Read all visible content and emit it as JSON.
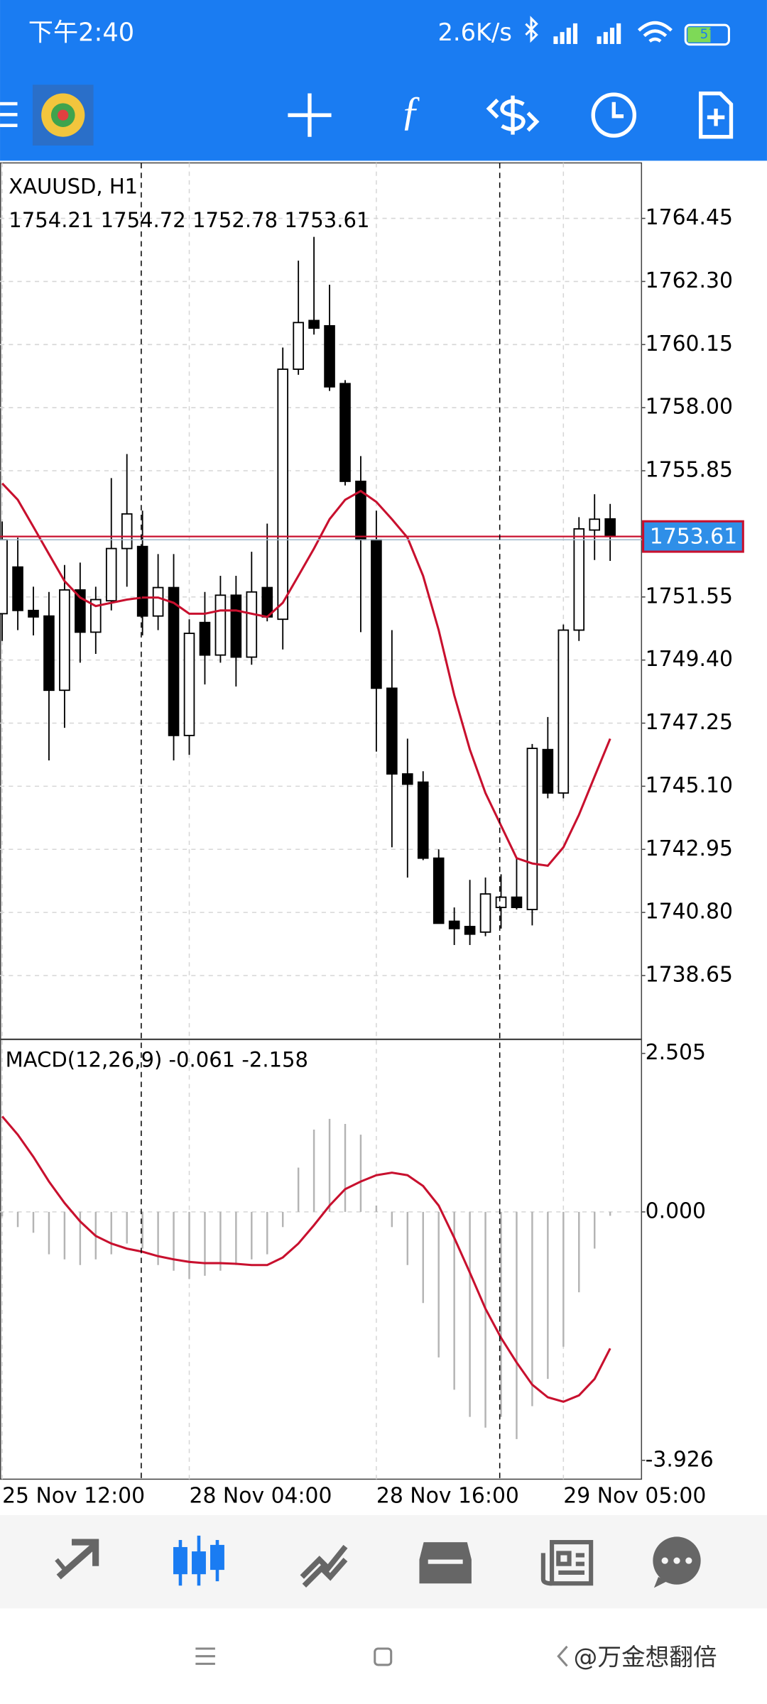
{
  "status_bar": {
    "time": "下午2:40",
    "speed": "2.6K/s",
    "battery": "57"
  },
  "watermark": "@万金想翻倍",
  "chart_data": [
    {
      "type": "candlestick",
      "title": "XAUUSD, H1",
      "subtitle": "1754.21 1754.72 1752.78 1753.61",
      "categories": [
        "25 Nov 12:00",
        null,
        null,
        null,
        null,
        null,
        null,
        null,
        null,
        null,
        null,
        null,
        "28 Nov 04:00",
        null,
        null,
        null,
        null,
        null,
        null,
        null,
        null,
        null,
        null,
        null,
        "28 Nov 16:00",
        null,
        null,
        null,
        null,
        null,
        null,
        null,
        null,
        null,
        null,
        null,
        "29 Nov 05:00",
        null,
        null,
        null
      ],
      "open": [
        1750.98,
        1752.57,
        1751.09,
        1750.9,
        1748.37,
        1751.79,
        1750.35,
        1751.42,
        1753.2,
        1753.27,
        1750.9,
        1751.87,
        1746.83,
        1750.68,
        1749.57,
        1751.61,
        1749.5,
        1751.87,
        1750.79,
        1759.31,
        1760.97,
        1760.79,
        1758.82,
        1755.49,
        1753.5,
        1748.44,
        1745.52,
        1745.24,
        1742.65,
        1740.5,
        1740.32,
        1740.13,
        1740.97,
        1741.32,
        1740.9,
        1746.35,
        1744.87,
        1750.42,
        1753.83,
        1754.21
      ],
      "high": [
        1754.12,
        1753.57,
        1751.9,
        1751.72,
        1752.64,
        1752.72,
        1751.9,
        1755.6,
        1756.42,
        1754.49,
        1753.01,
        1753.01,
        1750.79,
        1751.72,
        1752.27,
        1752.27,
        1753.09,
        1754.05,
        1760.05,
        1763.01,
        1763.82,
        1762.19,
        1758.94,
        1756.35,
        1754.49,
        1750.42,
        1746.72,
        1745.61,
        1742.95,
        1740.97,
        1741.91,
        1741.99,
        1742.1,
        1742.65,
        1746.54,
        1747.46,
        1750.61,
        1754.27,
        1755.05,
        1754.72
      ],
      "low": [
        1750.05,
        1750.42,
        1750.24,
        1745.98,
        1747.09,
        1749.31,
        1749.61,
        1751.09,
        1751.9,
        1750.24,
        1750.42,
        1745.98,
        1746.17,
        1748.57,
        1749.31,
        1748.5,
        1749.24,
        1750.72,
        1749.76,
        1759.12,
        1760.49,
        1758.57,
        1755.35,
        1750.35,
        1746.28,
        1743.02,
        1741.99,
        1742.58,
        1740.43,
        1739.69,
        1739.69,
        1739.99,
        1740.25,
        1740.9,
        1740.36,
        1744.69,
        1744.69,
        1750.05,
        1752.81,
        1752.78
      ],
      "close": [
        1753.5,
        1751.09,
        1750.87,
        1748.37,
        1751.79,
        1750.35,
        1751.46,
        1753.2,
        1754.38,
        1750.9,
        1751.87,
        1746.83,
        1750.31,
        1749.57,
        1751.61,
        1749.5,
        1751.72,
        1750.87,
        1759.31,
        1760.9,
        1760.71,
        1758.71,
        1755.49,
        1753.5,
        1748.44,
        1745.52,
        1745.17,
        1742.65,
        1740.43,
        1740.25,
        1740.06,
        1741.43,
        1741.32,
        1740.97,
        1746.39,
        1744.87,
        1750.42,
        1753.87,
        1754.2,
        1753.61
      ],
      "up_color": "#ffffff",
      "down_color": "#000000",
      "lines": [
        {
          "color": "#c8102e",
          "values": [
            1755.42,
            1754.86,
            1753.94,
            1753.01,
            1752.09,
            1751.53,
            1751.24,
            1751.35,
            1751.46,
            1751.53,
            1751.53,
            1751.35,
            1750.98,
            1750.98,
            1751.09,
            1751.09,
            1750.98,
            1750.87,
            1751.35,
            1752.27,
            1753.2,
            1754.2,
            1754.86,
            1755.16,
            1754.79,
            1754.2,
            1753.57,
            1752.27,
            1750.42,
            1748.2,
            1746.35,
            1744.87,
            1743.76,
            1742.65,
            1742.47,
            1742.39,
            1743.02,
            1744.13,
            1745.43,
            1746.72
          ]
        }
      ],
      "bid": 1753.61,
      "bid_color": "#c8102e",
      "ylim": [
        1736.55,
        1766.34
      ],
      "yticks": [
        1764.45,
        {
          "value": 1762.3,
          "label": "1762.30"
        },
        1760.15,
        {
          "value": 1758,
          "label": "1758.00"
        },
        1755.85,
        1751.55,
        {
          "value": 1749.4,
          "label": "1749.40"
        },
        1747.25,
        {
          "value": 1745.1,
          "label": "1745.10"
        },
        1742.95,
        {
          "value": 1740.8,
          "label": "1740.80"
        },
        1738.65
      ],
      "grid": true
    },
    {
      "type": "macd",
      "title": "MACD(12,26,9) -0.061 -2.158",
      "histogram": {
        "color": "#b4b4b4",
        "values": [
          -0.07,
          -0.24,
          -0.33,
          -0.67,
          -0.75,
          -0.84,
          -0.75,
          -0.67,
          -0.5,
          -0.58,
          -0.84,
          -0.93,
          -1.06,
          -1.01,
          -0.93,
          -0.84,
          -0.75,
          -0.67,
          -0.24,
          0.7,
          1.3,
          1.47,
          1.39,
          1.22,
          0.1,
          -0.24,
          -0.84,
          -1.44,
          -2.3,
          -2.81,
          -3.24,
          -3.41,
          -3.24,
          -3.59,
          -3.07,
          -2.64,
          -2.13,
          -1.27,
          -0.58,
          -0.061
        ]
      },
      "signal": {
        "color": "#c8102e",
        "values": [
          1.51,
          1.22,
          0.87,
          0.48,
          0.14,
          -0.15,
          -0.38,
          -0.5,
          -0.58,
          -0.63,
          -0.7,
          -0.75,
          -0.79,
          -0.81,
          -0.81,
          -0.82,
          -0.84,
          -0.84,
          -0.72,
          -0.5,
          -0.21,
          0.1,
          0.36,
          0.48,
          0.58,
          0.62,
          0.58,
          0.41,
          0.1,
          -0.41,
          -0.96,
          -1.53,
          -1.99,
          -2.38,
          -2.73,
          -2.93,
          -3,
          -2.9,
          -2.64,
          -2.158
        ]
      },
      "ylim": [
        -4.19,
        2.71
      ],
      "yticks": [
        2.505,
        {
          "value": 0,
          "label": "0.000"
        },
        -3.926
      ],
      "grid": false
    }
  ]
}
